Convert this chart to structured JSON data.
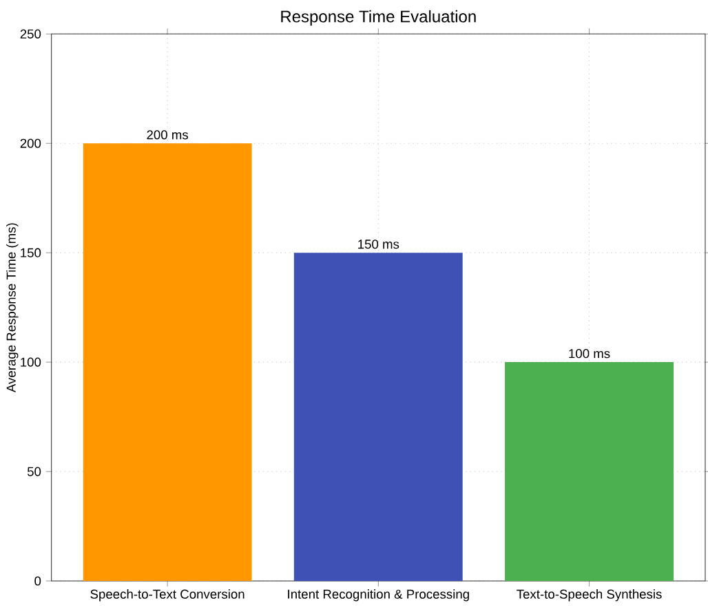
{
  "chart_data": {
    "type": "bar",
    "title": "Response Time Evaluation",
    "ylabel": "Average Response Time (ms)",
    "categories": [
      "Speech-to-Text Conversion",
      "Intent Recognition & Processing",
      "Text-to-Speech Synthesis"
    ],
    "values": [
      200,
      150,
      100
    ],
    "colors": [
      "#ff9800",
      "#3f51b5",
      "#4caf50"
    ],
    "value_labels": [
      "200 ms",
      "150 ms",
      "100 ms"
    ],
    "ylim": [
      0,
      250
    ],
    "yticks": [
      0,
      50,
      100,
      150,
      200,
      250
    ],
    "grid": true
  }
}
